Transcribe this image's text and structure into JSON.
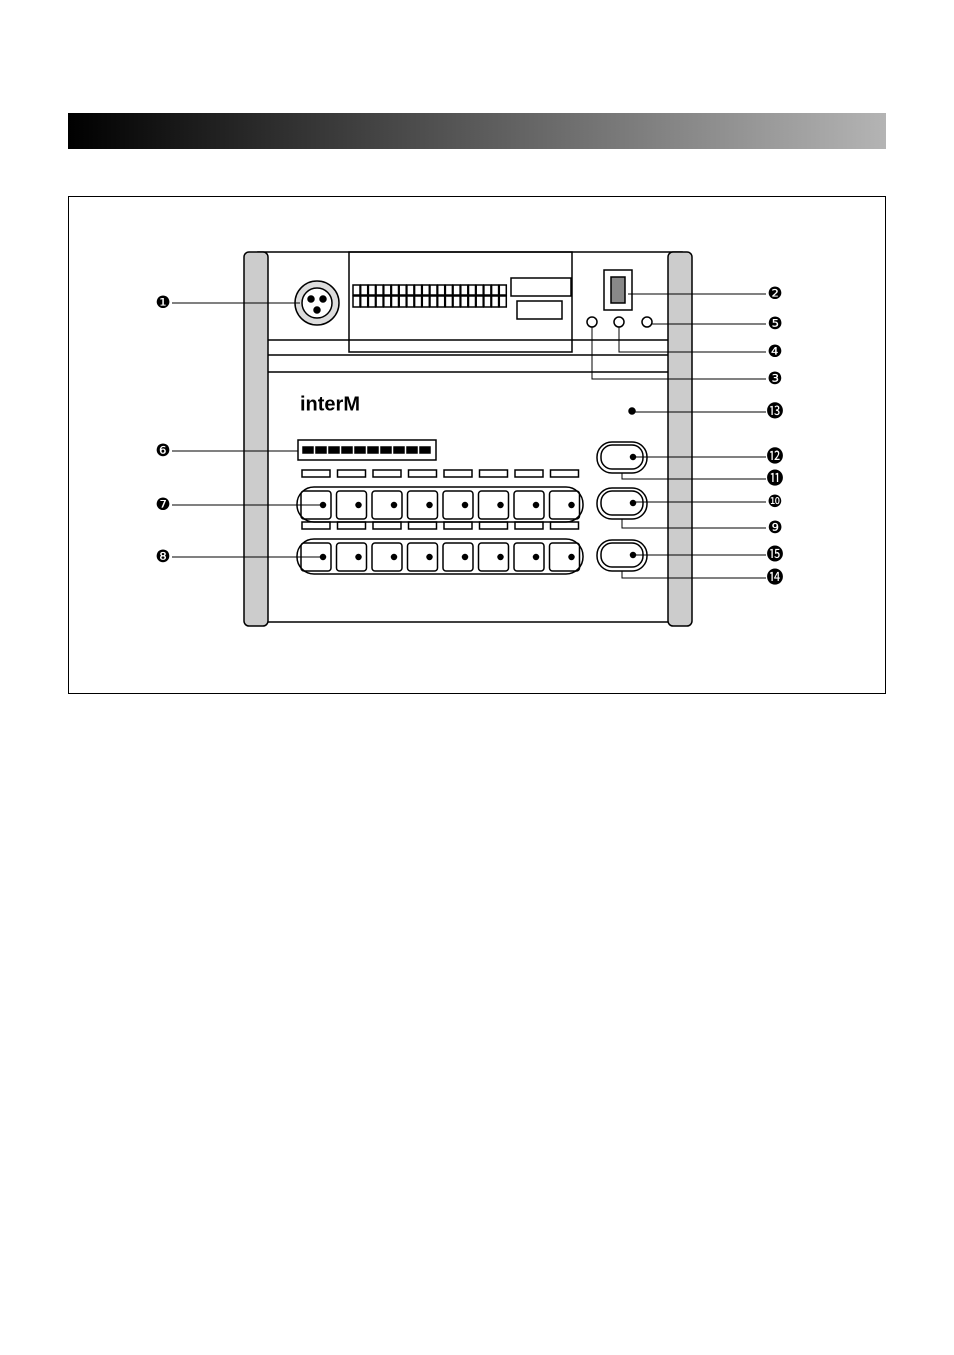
{
  "logo": "interM",
  "callouts": [
    "❶",
    "❷",
    "❸",
    "❹",
    "❺",
    "❻",
    "❼",
    "❽",
    "❾",
    "❿",
    "⓫",
    "⓬",
    "⓭",
    "⓮",
    "⓯"
  ]
}
